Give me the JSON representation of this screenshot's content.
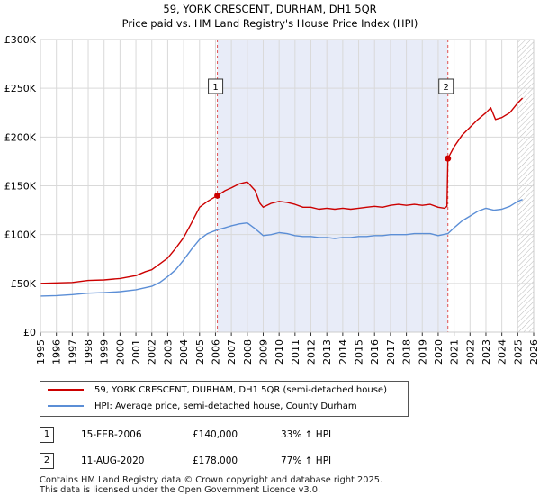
{
  "chart_data": {
    "type": "line",
    "title": "59, YORK CRESCENT, DURHAM, DH1 5QR",
    "subtitle": "Price paid vs. HM Land Registry's House Price Index (HPI)",
    "xlim": [
      1995,
      2026
    ],
    "ylim": [
      0,
      300000
    ],
    "x_ticks": [
      "1995",
      "1996",
      "1997",
      "1998",
      "1999",
      "2000",
      "2001",
      "2002",
      "2003",
      "2004",
      "2005",
      "2006",
      "2007",
      "2008",
      "2009",
      "2010",
      "2011",
      "2012",
      "2013",
      "2014",
      "2015",
      "2016",
      "2017",
      "2018",
      "2019",
      "2020",
      "2021",
      "2022",
      "2023",
      "2024",
      "2025",
      "2026"
    ],
    "y_ticks": [
      {
        "value": 0,
        "label": "£0"
      },
      {
        "value": 50000,
        "label": "£50K"
      },
      {
        "value": 100000,
        "label": "£100K"
      },
      {
        "value": 150000,
        "label": "£150K"
      },
      {
        "value": 200000,
        "label": "£200K"
      },
      {
        "value": 250000,
        "label": "£250K"
      },
      {
        "value": 300000,
        "label": "£300K"
      }
    ],
    "grid": true,
    "shaded_period": [
      2006.12,
      2020.61
    ],
    "hatched_from": 2025.0,
    "series": [
      {
        "name": "59, YORK CRESCENT, DURHAM, DH1 5QR (semi-detached house)",
        "color": "#cc0000",
        "points": [
          [
            1995.0,
            50000
          ],
          [
            1996.0,
            50500
          ],
          [
            1997.0,
            51000
          ],
          [
            1998.0,
            53000
          ],
          [
            1999.0,
            53500
          ],
          [
            2000.0,
            55000
          ],
          [
            2001.0,
            58000
          ],
          [
            2001.6,
            62000
          ],
          [
            2002.0,
            64000
          ],
          [
            2002.5,
            70000
          ],
          [
            2003.0,
            76000
          ],
          [
            2003.5,
            86000
          ],
          [
            2004.0,
            97000
          ],
          [
            2004.5,
            112000
          ],
          [
            2005.0,
            128000
          ],
          [
            2005.5,
            134000
          ],
          [
            2006.12,
            140000
          ],
          [
            2006.6,
            145000
          ],
          [
            2007.0,
            148000
          ],
          [
            2007.5,
            152000
          ],
          [
            2008.0,
            154000
          ],
          [
            2008.5,
            145000
          ],
          [
            2008.8,
            132000
          ],
          [
            2009.0,
            128000
          ],
          [
            2009.5,
            132000
          ],
          [
            2010.0,
            134000
          ],
          [
            2010.5,
            133000
          ],
          [
            2011.0,
            131000
          ],
          [
            2011.5,
            128000
          ],
          [
            2012.0,
            128000
          ],
          [
            2012.5,
            126000
          ],
          [
            2013.0,
            127000
          ],
          [
            2013.5,
            126000
          ],
          [
            2014.0,
            127000
          ],
          [
            2014.5,
            126000
          ],
          [
            2015.0,
            127000
          ],
          [
            2015.5,
            128000
          ],
          [
            2016.0,
            129000
          ],
          [
            2016.5,
            128000
          ],
          [
            2017.0,
            130000
          ],
          [
            2017.5,
            131000
          ],
          [
            2018.0,
            130000
          ],
          [
            2018.5,
            131000
          ],
          [
            2019.0,
            130000
          ],
          [
            2019.5,
            131000
          ],
          [
            2020.0,
            128000
          ],
          [
            2020.4,
            127000
          ],
          [
            2020.55,
            129000
          ],
          [
            2020.61,
            178000
          ],
          [
            2021.0,
            190000
          ],
          [
            2021.5,
            202000
          ],
          [
            2022.0,
            210000
          ],
          [
            2022.5,
            218000
          ],
          [
            2023.0,
            225000
          ],
          [
            2023.3,
            230000
          ],
          [
            2023.6,
            218000
          ],
          [
            2024.0,
            220000
          ],
          [
            2024.5,
            225000
          ],
          [
            2025.0,
            235000
          ],
          [
            2025.3,
            240000
          ]
        ]
      },
      {
        "name": "HPI: Average price, semi-detached house, County Durham",
        "color": "#5b8ed6",
        "points": [
          [
            1995.0,
            37000
          ],
          [
            1996.0,
            37500
          ],
          [
            1997.0,
            38500
          ],
          [
            1998.0,
            40000
          ],
          [
            1999.0,
            40500
          ],
          [
            2000.0,
            41500
          ],
          [
            2001.0,
            43500
          ],
          [
            2002.0,
            47000
          ],
          [
            2002.5,
            51000
          ],
          [
            2003.0,
            57000
          ],
          [
            2003.5,
            64000
          ],
          [
            2004.0,
            74000
          ],
          [
            2004.5,
            85000
          ],
          [
            2005.0,
            95000
          ],
          [
            2005.5,
            101000
          ],
          [
            2006.12,
            105000
          ],
          [
            2006.6,
            107000
          ],
          [
            2007.0,
            109000
          ],
          [
            2007.5,
            111000
          ],
          [
            2008.0,
            112000
          ],
          [
            2008.5,
            106000
          ],
          [
            2009.0,
            99000
          ],
          [
            2009.5,
            100000
          ],
          [
            2010.0,
            102000
          ],
          [
            2010.5,
            101000
          ],
          [
            2011.0,
            99000
          ],
          [
            2011.5,
            98000
          ],
          [
            2012.0,
            98000
          ],
          [
            2012.5,
            97000
          ],
          [
            2013.0,
            97000
          ],
          [
            2013.5,
            96000
          ],
          [
            2014.0,
            97000
          ],
          [
            2014.5,
            97000
          ],
          [
            2015.0,
            98000
          ],
          [
            2015.5,
            98000
          ],
          [
            2016.0,
            99000
          ],
          [
            2016.5,
            99000
          ],
          [
            2017.0,
            100000
          ],
          [
            2017.5,
            100000
          ],
          [
            2018.0,
            100000
          ],
          [
            2018.5,
            101000
          ],
          [
            2019.0,
            101000
          ],
          [
            2019.5,
            101000
          ],
          [
            2020.0,
            99000
          ],
          [
            2020.61,
            101000
          ],
          [
            2021.0,
            107000
          ],
          [
            2021.5,
            114000
          ],
          [
            2022.0,
            119000
          ],
          [
            2022.5,
            124000
          ],
          [
            2023.0,
            127000
          ],
          [
            2023.5,
            125000
          ],
          [
            2024.0,
            126000
          ],
          [
            2024.5,
            129000
          ],
          [
            2025.0,
            134000
          ],
          [
            2025.3,
            136000
          ]
        ]
      }
    ],
    "markers": [
      {
        "label": "1",
        "x": 2006.12,
        "y": 140000
      },
      {
        "label": "2",
        "x": 2020.61,
        "y": 178000
      }
    ]
  },
  "legend": {
    "series1": "59, YORK CRESCENT, DURHAM, DH1 5QR (semi-detached house)",
    "series2": "HPI: Average price, semi-detached house, County Durham"
  },
  "sales": [
    {
      "num": "1",
      "date": "15-FEB-2006",
      "price": "£140,000",
      "hpi": "33% ↑ HPI"
    },
    {
      "num": "2",
      "date": "11-AUG-2020",
      "price": "£178,000",
      "hpi": "77% ↑ HPI"
    }
  ],
  "footer": {
    "line1": "Contains HM Land Registry data © Crown copyright and database right 2025.",
    "line2": "This data is licensed under the Open Government Licence v3.0."
  }
}
